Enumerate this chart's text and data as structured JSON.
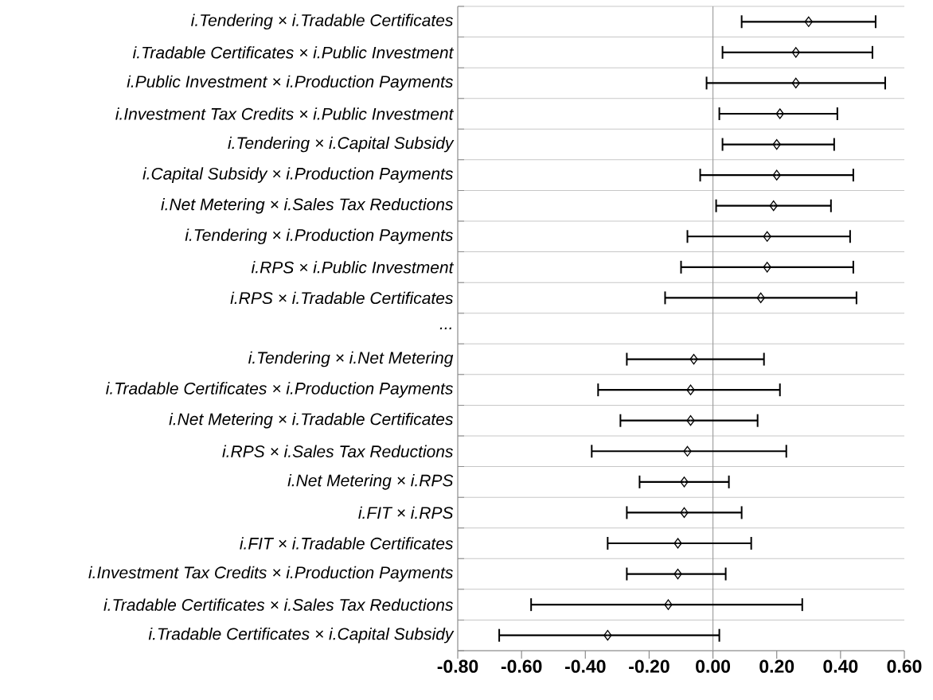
{
  "chart_data": {
    "type": "scatter",
    "orientation": "horizontal",
    "categories": [
      "i.Tendering × i.Tradable Certificates",
      "i.Tradable Certificates × i.Public Investment",
      "i.Public Investment × i.Production Payments",
      "i.Investment Tax Credits × i.Public Investment",
      "i.Tendering × i.Capital Subsidy",
      "i.Capital Subsidy × i.Production Payments",
      "i.Net Metering × i.Sales Tax Reductions",
      "i.Tendering × i.Production Payments",
      "i.RPS × i.Public Investment",
      "i.RPS × i.Tradable Certificates",
      "...",
      "i.Tendering × i.Net Metering",
      "i.Tradable Certificates × i.Production Payments",
      "i.Net Metering × i.Tradable Certificates",
      "i.RPS × i.Sales Tax Reductions",
      "i.Net Metering × i.RPS",
      "i.FIT × i.RPS",
      "i.FIT × i.Tradable Certificates",
      "i.Investment Tax Credits × i.Production Payments",
      "i.Tradable Certificates × i.Sales Tax Reductions",
      "i.Tradable Certificates × i.Capital Subsidy"
    ],
    "values": [
      0.3,
      0.26,
      0.26,
      0.21,
      0.2,
      0.2,
      0.19,
      0.17,
      0.17,
      0.15,
      null,
      -0.06,
      -0.07,
      -0.07,
      -0.08,
      -0.09,
      -0.09,
      -0.11,
      -0.11,
      -0.14,
      -0.33
    ],
    "errors": [
      [
        0.09,
        0.51
      ],
      [
        0.03,
        0.5
      ],
      [
        -0.02,
        0.54
      ],
      [
        0.02,
        0.39
      ],
      [
        0.03,
        0.38
      ],
      [
        -0.04,
        0.44
      ],
      [
        0.01,
        0.37
      ],
      [
        -0.08,
        0.43
      ],
      [
        -0.1,
        0.44
      ],
      [
        -0.15,
        0.45
      ],
      null,
      [
        -0.27,
        0.16
      ],
      [
        -0.36,
        0.21
      ],
      [
        -0.29,
        0.14
      ],
      [
        -0.38,
        0.23
      ],
      [
        -0.23,
        0.05
      ],
      [
        -0.27,
        0.09
      ],
      [
        -0.33,
        0.12
      ],
      [
        -0.27,
        0.04
      ],
      [
        -0.57,
        0.28
      ],
      [
        -0.67,
        0.02
      ]
    ],
    "color": "#000000",
    "marker": "diamond",
    "xlim": [
      -0.8,
      0.6
    ],
    "xticks": [
      {
        "value": -0.8,
        "label": "-0.80"
      },
      {
        "value": -0.6,
        "label": "-0.60"
      },
      {
        "value": -0.4,
        "label": "-0.40"
      },
      {
        "value": -0.2,
        "label": "-0.20"
      },
      {
        "value": 0,
        "label": "0.00"
      },
      {
        "value": 0.2,
        "label": "0.20"
      },
      {
        "value": 0.4,
        "label": "0.40"
      },
      {
        "value": 0.6,
        "label": "0.60"
      }
    ],
    "ref_lines": [
      {
        "axis": "x",
        "value": 0,
        "color": "#a0a0a0"
      }
    ],
    "grid": "y"
  }
}
